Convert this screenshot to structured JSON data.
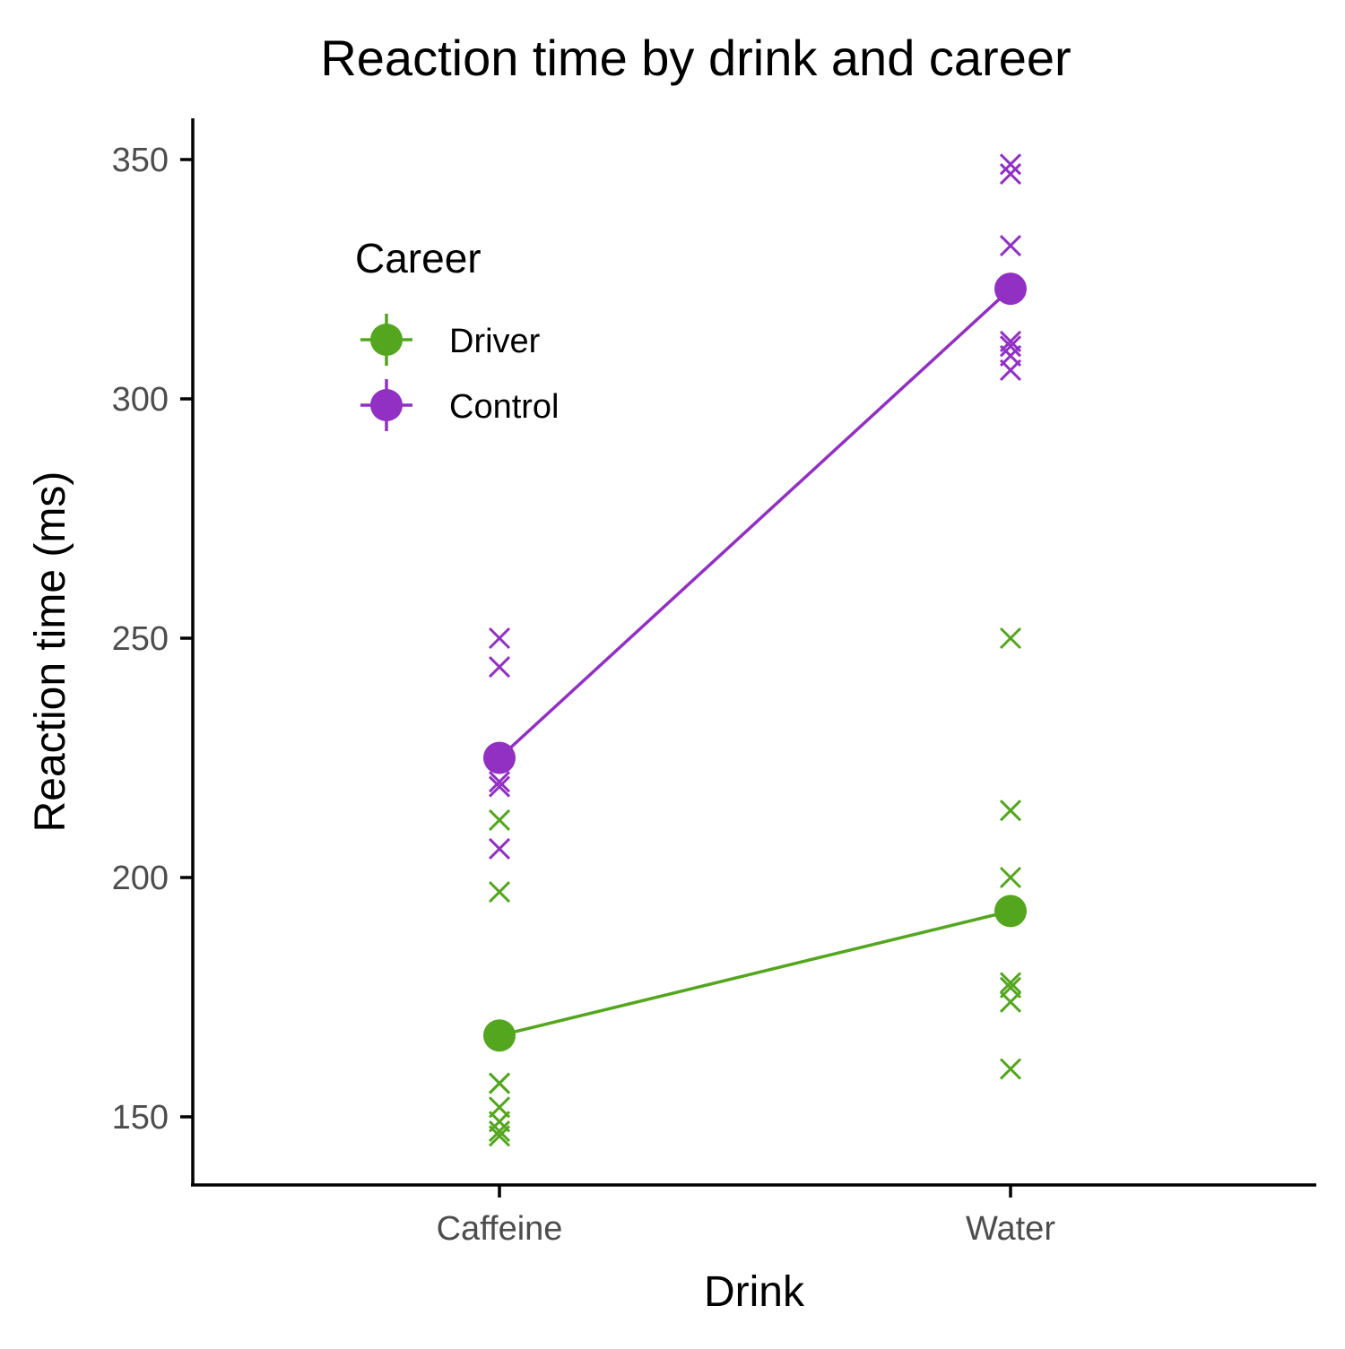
{
  "chart_data": {
    "type": "line",
    "title": "Reaction time by drink and career",
    "xlabel": "Drink",
    "ylabel": "Reaction time (ms)",
    "categories": [
      "Caffeine",
      "Water"
    ],
    "ylim": [
      136,
      358
    ],
    "yticks": [
      150,
      200,
      250,
      300,
      350
    ],
    "ytick_labels": [
      "150",
      "200",
      "250",
      "300",
      "350"
    ],
    "grid": false,
    "legend": {
      "title": "Career",
      "placement": "top-left-inside"
    },
    "series": [
      {
        "name": "Driver",
        "color": "#53a61e",
        "means": [
          167,
          193
        ],
        "observations": [
          [
            157,
            157,
            152,
            149,
            147,
            146,
            197,
            212
          ],
          [
            250,
            214,
            200,
            178,
            177,
            174,
            160
          ]
        ]
      },
      {
        "name": "Control",
        "color": "#9130c2",
        "means": [
          225,
          323
        ],
        "observations": [
          [
            250,
            244,
            220,
            219,
            206
          ],
          [
            349,
            347,
            332,
            312,
            311,
            309,
            306
          ]
        ]
      }
    ]
  }
}
